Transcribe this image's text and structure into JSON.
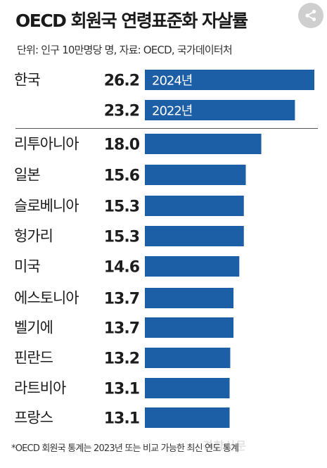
{
  "title": "OECD 회원국 연령표준화 자살률",
  "subtitle": "단위: 인구 10만명당 명, 자료: OECD, 국가데이터처",
  "footnote": "*OECD 회원국 통계는 2023년 또는 비교 가능한 최신 연도 통계",
  "watermark": "경향신문",
  "share_icon": "share-icon",
  "colors": {
    "bar": "#1d5fa7",
    "text": "#1d1d1d",
    "bar_label": "#ffffff"
  },
  "chart_data": {
    "type": "bar",
    "orientation": "horizontal",
    "title": "OECD 회원국 연령표준화 자살률",
    "xlim": [
      0,
      26.2
    ],
    "grid": false,
    "rows": [
      {
        "country": "한국",
        "value": 26.2,
        "value_label": "26.2",
        "bar_label": "2024년"
      },
      {
        "country": "",
        "value": 23.2,
        "value_label": "23.2",
        "bar_label": "2022년"
      },
      {
        "country": "리투아니아",
        "value": 18.0,
        "value_label": "18.0",
        "bar_label": ""
      },
      {
        "country": "일본",
        "value": 15.6,
        "value_label": "15.6",
        "bar_label": ""
      },
      {
        "country": "슬로베니아",
        "value": 15.3,
        "value_label": "15.3",
        "bar_label": ""
      },
      {
        "country": "헝가리",
        "value": 15.3,
        "value_label": "15.3",
        "bar_label": ""
      },
      {
        "country": "미국",
        "value": 14.6,
        "value_label": "14.6",
        "bar_label": ""
      },
      {
        "country": "에스토니아",
        "value": 13.7,
        "value_label": "13.7",
        "bar_label": ""
      },
      {
        "country": "벨기에",
        "value": 13.7,
        "value_label": "13.7",
        "bar_label": ""
      },
      {
        "country": "핀란드",
        "value": 13.2,
        "value_label": "13.2",
        "bar_label": ""
      },
      {
        "country": "라트비아",
        "value": 13.1,
        "value_label": "13.1",
        "bar_label": ""
      },
      {
        "country": "프랑스",
        "value": 13.1,
        "value_label": "13.1",
        "bar_label": ""
      }
    ]
  }
}
